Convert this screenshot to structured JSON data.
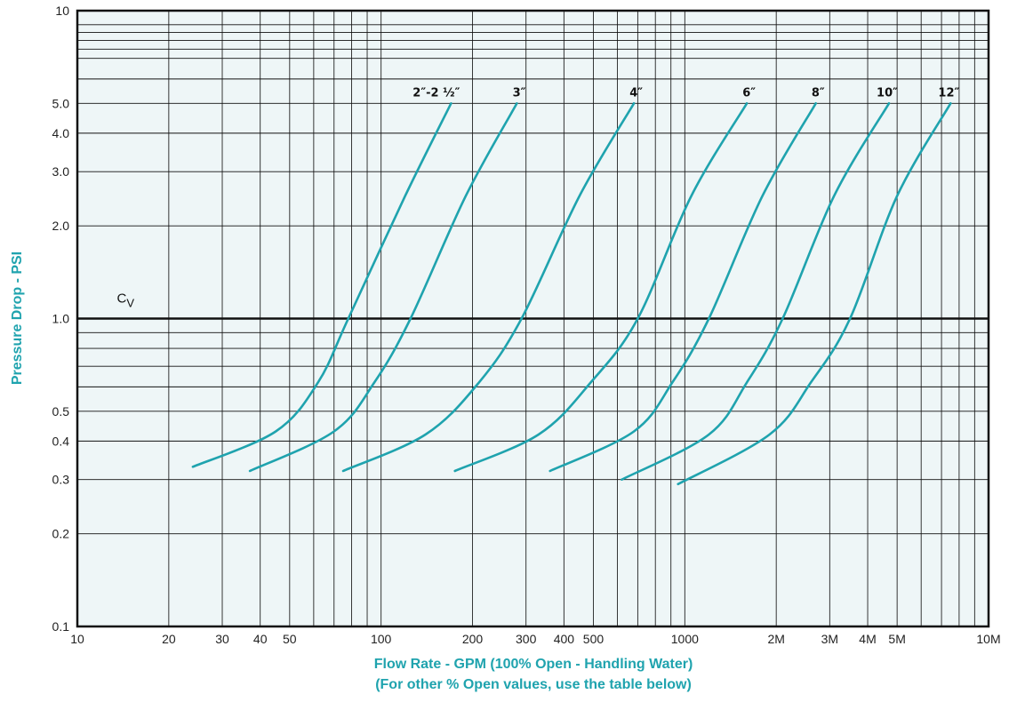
{
  "chart_data": {
    "type": "line",
    "x_scale": "log",
    "y_scale": "log",
    "xlim": [
      10,
      10000
    ],
    "ylim": [
      0.1,
      10
    ],
    "xlabel": "Flow Rate - GPM (100% Open - Handling Water)",
    "xlabel_sub": "(For other % Open values, use the table below)",
    "ylabel": "Pressure Drop - PSI",
    "x_ticks": [
      {
        "value": 10,
        "label": "10"
      },
      {
        "value": 20,
        "label": "20"
      },
      {
        "value": 30,
        "label": "30"
      },
      {
        "value": 40,
        "label": "40"
      },
      {
        "value": 50,
        "label": "50"
      },
      {
        "value": 100,
        "label": "100"
      },
      {
        "value": 200,
        "label": "200"
      },
      {
        "value": 300,
        "label": "300"
      },
      {
        "value": 400,
        "label": "400"
      },
      {
        "value": 500,
        "label": "500"
      },
      {
        "value": 1000,
        "label": "1000"
      },
      {
        "value": 2000,
        "label": "2M"
      },
      {
        "value": 3000,
        "label": "3M"
      },
      {
        "value": 4000,
        "label": "4M"
      },
      {
        "value": 5000,
        "label": "5M"
      },
      {
        "value": 10000,
        "label": "10M"
      }
    ],
    "y_ticks": [
      {
        "value": 0.1,
        "label": "0.1"
      },
      {
        "value": 0.2,
        "label": "0.2"
      },
      {
        "value": 0.3,
        "label": "0.3"
      },
      {
        "value": 0.4,
        "label": "0.4"
      },
      {
        "value": 0.5,
        "label": "0.5"
      },
      {
        "value": 1,
        "label": "1.0"
      },
      {
        "value": 2,
        "label": "2.0"
      },
      {
        "value": 3,
        "label": "3.0"
      },
      {
        "value": 4,
        "label": "4.0"
      },
      {
        "value": 5,
        "label": "5.0"
      },
      {
        "value": 10,
        "label": "10"
      }
    ],
    "reference_line": {
      "y": 1.0,
      "label": "C",
      "label_sub": "V"
    },
    "grid": true,
    "series_color": "#1fa3ae",
    "series": [
      {
        "name": "2″-2 ½″",
        "points": [
          [
            24,
            0.33
          ],
          [
            45,
            0.43
          ],
          [
            62,
            0.62
          ],
          [
            78,
            1.0
          ],
          [
            120,
            2.5
          ],
          [
            170,
            5.0
          ]
        ]
      },
      {
        "name": "3″",
        "points": [
          [
            37,
            0.32
          ],
          [
            70,
            0.43
          ],
          [
            95,
            0.62
          ],
          [
            125,
            1.0
          ],
          [
            190,
            2.5
          ],
          [
            280,
            5.0
          ]
        ]
      },
      {
        "name": "4″",
        "points": [
          [
            75,
            0.32
          ],
          [
            140,
            0.42
          ],
          [
            210,
            0.62
          ],
          [
            290,
            1.0
          ],
          [
            450,
            2.5
          ],
          [
            680,
            5.0
          ]
        ]
      },
      {
        "name": "6″",
        "points": [
          [
            175,
            0.32
          ],
          [
            330,
            0.42
          ],
          [
            490,
            0.62
          ],
          [
            700,
            1.0
          ],
          [
            1050,
            2.5
          ],
          [
            1600,
            5.0
          ]
        ]
      },
      {
        "name": "8″",
        "points": [
          [
            360,
            0.32
          ],
          [
            680,
            0.43
          ],
          [
            910,
            0.62
          ],
          [
            1200,
            1.0
          ],
          [
            1800,
            2.5
          ],
          [
            2700,
            5.0
          ]
        ]
      },
      {
        "name": "10″",
        "points": [
          [
            620,
            0.3
          ],
          [
            1200,
            0.42
          ],
          [
            1600,
            0.62
          ],
          [
            2100,
            1.0
          ],
          [
            3100,
            2.5
          ],
          [
            4700,
            5.0
          ]
        ]
      },
      {
        "name": "12″",
        "points": [
          [
            950,
            0.29
          ],
          [
            1900,
            0.42
          ],
          [
            2600,
            0.62
          ],
          [
            3500,
            1.0
          ],
          [
            5000,
            2.5
          ],
          [
            7500,
            5.0
          ]
        ]
      }
    ]
  }
}
